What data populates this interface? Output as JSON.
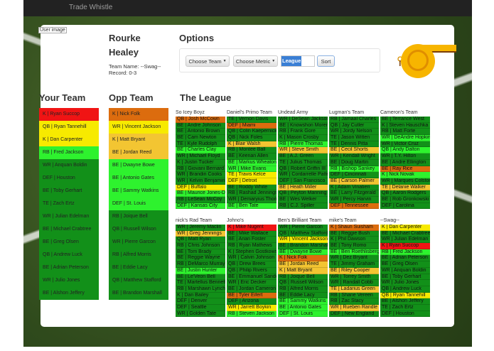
{
  "nav": {
    "brand": "Trade Whistle"
  },
  "user": {
    "image_alt": "User image",
    "first_name": "Rourke",
    "last_name": "Healey",
    "team_name": "Team Name: --Swag--",
    "record": "Record: 0-3"
  },
  "options": {
    "title": "Options",
    "choose_team": "Choose Team",
    "choose_metric": "Choose Metric",
    "input_value": "League",
    "sort": "Sort"
  },
  "colors": {
    "r": "#f01414",
    "o": "#dc6c0e",
    "y": "#f7ea00",
    "a": "#f3c532",
    "l": "#2ef22e",
    "g": "#129019"
  },
  "your_team": {
    "title": "Your Team",
    "players": [
      [
        "K | Ryan Succop",
        "r"
      ],
      [
        "QB | Ryan Tannehill",
        "y"
      ],
      [
        "K | Dan Carpenter",
        "y"
      ],
      [
        "RB | Fred Jackson",
        "l"
      ],
      [
        "WR | Anquan Boldin",
        "g"
      ],
      [
        "DEF | Houston",
        "g"
      ],
      [
        "BE | Toby Gerhart",
        "g"
      ],
      [
        "TE | Zach Ertz",
        "g"
      ],
      [
        "WR | Julian Edelman",
        "g"
      ],
      [
        "BE | Michael Crabtree",
        "g"
      ],
      [
        "BE | Greg Olsen",
        "g"
      ],
      [
        "QB | Andrew Luck",
        "g"
      ],
      [
        "BE | Adrian Peterson",
        "g"
      ],
      [
        "WR | Julio Jones",
        "g"
      ],
      [
        "BE | Alshon Jeffery",
        "g"
      ]
    ]
  },
  "opp_team": {
    "title": "Opp Team",
    "players": [
      [
        "K | Nick Folk",
        "o"
      ],
      [
        "WR | Vincent Jackson",
        "y"
      ],
      [
        "K | Matt Bryant",
        "a"
      ],
      [
        "BE | Jordan Reed",
        "a"
      ],
      [
        "BE | Dwayne Bowe",
        "l"
      ],
      [
        "BE | Antonio Gates",
        "l"
      ],
      [
        "BE | Sammy Watkins",
        "l"
      ],
      [
        "DEF | St. Louis",
        "l"
      ],
      [
        "RB | Joique Bell",
        "g"
      ],
      [
        "QB | Russell Wilson",
        "g"
      ],
      [
        "WR | Pierre Garcon",
        "g"
      ],
      [
        "RB | Alfred Morris",
        "g"
      ],
      [
        "BE | Eddie Lacy",
        "g"
      ],
      [
        "QB | Matthew Stafford",
        "g"
      ],
      [
        "BE | Brandon Marshall",
        "g"
      ]
    ]
  },
  "league": {
    "title": "The League",
    "teams": [
      {
        "name": "So Icey Boyz",
        "players": [
          [
            "QB | Josh McCown",
            "o"
          ],
          [
            "BE | Andre Johnson",
            "g"
          ],
          [
            "BE | Antonio Brown",
            "g"
          ],
          [
            "BE | Cam Newton",
            "g"
          ],
          [
            "TE | Kyle Rudolph",
            "g"
          ],
          [
            "BE | Charles Clay",
            "l"
          ],
          [
            "WR | Michael Floyd",
            "g"
          ],
          [
            "K | Justin Tucker",
            "g"
          ],
          [
            "RB | Giovani Bernard",
            "g"
          ],
          [
            "WR | Brandin Cooks",
            "g"
          ],
          [
            "WR | Kelvin Benjamin",
            "g"
          ],
          [
            "DEF | Buffalo",
            "y"
          ],
          [
            "BE | Maurice Jones-Drew",
            "l"
          ],
          [
            "RB | LeSean McCoy",
            "g"
          ],
          [
            "DEF | Kansas City",
            "l"
          ]
        ]
      },
      {
        "name": "Daniel's Primo Team",
        "players": [
          [
            "TE | Vernon Davis",
            "g"
          ],
          [
            "DEF | Miami",
            "o"
          ],
          [
            "QB | Colin Kaepernick",
            "g"
          ],
          [
            "QB | Nick Foles",
            "g"
          ],
          [
            "K | Blair Walsh",
            "a"
          ],
          [
            "RB | Montee Ball",
            "g"
          ],
          [
            "BE | Keenan Allen",
            "g"
          ],
          [
            "BE | Markus Wheaton",
            "l"
          ],
          [
            "WR | Mike Evans",
            "l"
          ],
          [
            "TE | Travis Kelce",
            "y"
          ],
          [
            "DEF | Detroit",
            "y"
          ],
          [
            "BE | Roddy White",
            "g"
          ],
          [
            "RB | Rashad Jennings",
            "g"
          ],
          [
            "WR | Demaryius Thomas",
            "g"
          ],
          [
            "BE | Ben Tate",
            "l"
          ]
        ]
      },
      {
        "name": "Undead Army",
        "players": [
          [
            "WR | DeSean Jackson",
            "g"
          ],
          [
            "BE | Knowshon Moreno",
            "g"
          ],
          [
            "RB | Frank Gore",
            "g"
          ],
          [
            "K | Mason Crosby",
            "g"
          ],
          [
            "RB | Pierre Thomas",
            "l"
          ],
          [
            "WR | Steve Smith",
            "a"
          ],
          [
            "BE | A.J. Green",
            "g"
          ],
          [
            "TE | Julius Thomas",
            "g"
          ],
          [
            "QB | Robert Griffin III",
            "g"
          ],
          [
            "WR | Cordarrelle Patterson",
            "g"
          ],
          [
            "DEF | San Francisco",
            "g"
          ],
          [
            "BE | Heath Miller",
            "a"
          ],
          [
            "QB | Peyton Manning",
            "g"
          ],
          [
            "BE | Wes Welker",
            "g"
          ],
          [
            "RB | C.J. Spiller",
            "g"
          ]
        ]
      },
      {
        "name": "Lugman's Team",
        "players": [
          [
            "RB | Jamaal Charles",
            "g"
          ],
          [
            "QB | Jay Cutler",
            "g"
          ],
          [
            "WR | Jordy Nelson",
            "g"
          ],
          [
            "TE | Jason Witten",
            "g"
          ],
          [
            "TE | Dennis Pitta",
            "g"
          ],
          [
            "BE | Cecil Shorts",
            "a"
          ],
          [
            "WR | Kendall Wright",
            "g"
          ],
          [
            "BE | Doug Martin",
            "g"
          ],
          [
            "RB | Bishop Sankey",
            "l"
          ],
          [
            "DEF | Cincinnati",
            "g"
          ],
          [
            "BE | Carson Palmer",
            "a"
          ],
          [
            "K | Adam Vinatieri",
            "g"
          ],
          [
            "BE | Larry Fitzgerald",
            "g"
          ],
          [
            "WR | Percy Harvin",
            "g"
          ],
          [
            "DEF | Tennessee",
            "o"
          ]
        ]
      },
      {
        "name": "Cameron's Team",
        "players": [
          [
            "BE | Terrance West",
            "g"
          ],
          [
            "K | Steven Hauschka",
            "g"
          ],
          [
            "RB | Matt Forte",
            "g"
          ],
          [
            "WR | DeAndre Hopkins",
            "l"
          ],
          [
            "WR | Victor Cruz",
            "g"
          ],
          [
            "QB | Andy Dalton",
            "l"
          ],
          [
            "WR | T.Y. Hilton",
            "g"
          ],
          [
            "BE | Andre Ellington",
            "g"
          ],
          [
            "BE | Ray Rice",
            "o"
          ],
          [
            "K | Nick Novak",
            "l"
          ],
          [
            "WR | Marques Colston",
            "g"
          ],
          [
            "TE | Delanie Walker",
            "a"
          ],
          [
            "QB | Aaron Rodgers",
            "g"
          ],
          [
            "BE | Rob Gronkowski",
            "g"
          ],
          [
            "DEF | Carolina",
            "g"
          ]
        ]
      },
      {
        "name": "nick's Rad Team",
        "players": [
          [
            "WR | Jeremy Maclin",
            "g"
          ],
          [
            "WR | Greg Jennings",
            "a"
          ],
          [
            "QB | Matt Ryan",
            "g"
          ],
          [
            "RB | Chris Johnson",
            "g"
          ],
          [
            "BE | Tom Brady",
            "g"
          ],
          [
            "BE | Reggie Wayne",
            "g"
          ],
          [
            "RB | DeMarco Murray",
            "g"
          ],
          [
            "BE | Justin Hunter",
            "l"
          ],
          [
            "BE | Le'Veon Bell",
            "g"
          ],
          [
            "TE | Martellus Bennett",
            "g"
          ],
          [
            "RB | Marshawn Lynch",
            "g"
          ],
          [
            "K | Dan Bailey",
            "g"
          ],
          [
            "DEF | Denver",
            "g"
          ],
          [
            "DEF | Seattle",
            "g"
          ],
          [
            "WR | Golden Tate",
            "g"
          ]
        ]
      },
      {
        "name": "Johno's",
        "players": [
          [
            "K | Mike Nugent",
            "r"
          ],
          [
            "BE | Mike Wallace",
            "g"
          ],
          [
            "BE | Arian Foster",
            "g"
          ],
          [
            "RB | Ryan Mathews",
            "g"
          ],
          [
            "K | Stephen Gostkowski",
            "g"
          ],
          [
            "WR | Calvin Johnson",
            "g"
          ],
          [
            "QB | Drew Brees",
            "g"
          ],
          [
            "QB | Philip Rivers",
            "g"
          ],
          [
            "BE | Emmanuel Sanders",
            "g"
          ],
          [
            "WR | Eric Decker",
            "g"
          ],
          [
            "BE | Jordan Cameron",
            "g"
          ],
          [
            "BE | Tyler Eifert",
            "o"
          ],
          [
            "DEF | Arizona",
            "g"
          ],
          [
            "WR | Jarrett Boykin",
            "y"
          ],
          [
            "RB | Steven Jackson",
            "l"
          ]
        ]
      },
      {
        "name": "Ben's Brilliant Team",
        "players": [
          [
            "WR | Pierre Garcon",
            "g"
          ],
          [
            "QB | Matthew Stafford",
            "g"
          ],
          [
            "WR | Vincent Jackson",
            "y"
          ],
          [
            "BE | Brandon Marshall",
            "g"
          ],
          [
            "BE | Dwayne Bowe",
            "l"
          ],
          [
            "K | Nick Folk",
            "o"
          ],
          [
            "BE | Jordan Reed",
            "a"
          ],
          [
            "K | Matt Bryant",
            "a"
          ],
          [
            "RB | Joique Bell",
            "g"
          ],
          [
            "QB | Russell Wilson",
            "g"
          ],
          [
            "RB | Alfred Morris",
            "g"
          ],
          [
            "BE | Eddie Lacy",
            "g"
          ],
          [
            "BE | Sammy Watkins",
            "l"
          ],
          [
            "BE | Antonio Gates",
            "l"
          ],
          [
            "DEF | St. Louis",
            "l"
          ]
        ]
      },
      {
        "name": "mike's Team",
        "players": [
          [
            "K | Shaun Suisham",
            "o"
          ],
          [
            "BE | Reggie Bush",
            "g"
          ],
          [
            "K | Phil Dawson",
            "g"
          ],
          [
            "BE | Tony Romo",
            "g"
          ],
          [
            "BE | Ben Roethlisberger",
            "l"
          ],
          [
            "WR | Dez Bryant",
            "g"
          ],
          [
            "TE | Jimmy Graham",
            "g"
          ],
          [
            "BE | Riley Cooper",
            "a"
          ],
          [
            "WR | Torrey Smith",
            "g"
          ],
          [
            "WR | Randall Cobb",
            "g"
          ],
          [
            "TE | Ladarius Green",
            "a"
          ],
          [
            "RB | Shane Vereen",
            "g"
          ],
          [
            "RB | Zac Stacy",
            "g"
          ],
          [
            "WR | Rueben Randle",
            "a"
          ],
          [
            "DEF | New England",
            "g"
          ]
        ]
      },
      {
        "name": "--Swag--",
        "players": [
          [
            "K | Dan Carpenter",
            "y"
          ],
          [
            "BE | Michael Crabtree",
            "g"
          ],
          [
            "WR | Julian Edelman",
            "g"
          ],
          [
            "K | Ryan Succop",
            "r"
          ],
          [
            "RB | Fred Jackson",
            "l"
          ],
          [
            "BE | Adrian Peterson",
            "g"
          ],
          [
            "BE | Greg Olsen",
            "g"
          ],
          [
            "WR | Anquan Boldin",
            "g"
          ],
          [
            "BE | Toby Gerhart",
            "g"
          ],
          [
            "WR | Julio Jones",
            "g"
          ],
          [
            "QB | Andrew Luck",
            "g"
          ],
          [
            "QB | Ryan Tannehill",
            "y"
          ],
          [
            "BE | Alshon Jeffery",
            "g"
          ],
          [
            "TE | Zach Ertz",
            "g"
          ],
          [
            "DEF | Houston",
            "g"
          ]
        ]
      }
    ]
  }
}
